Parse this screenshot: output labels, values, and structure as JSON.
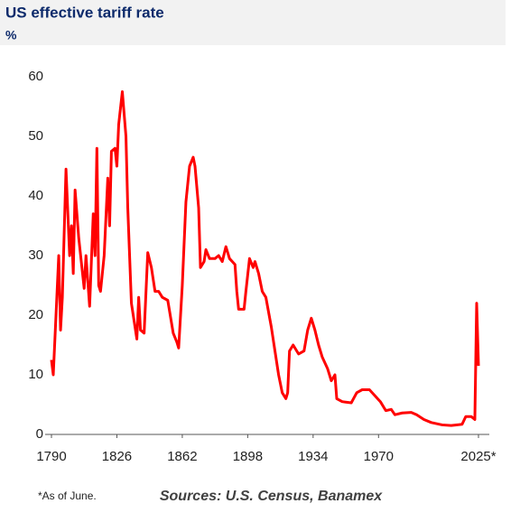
{
  "chart_data": {
    "type": "line",
    "title": "US effective tariff rate",
    "subtitle": "%",
    "x": [
      1790,
      1791,
      1794,
      1795,
      1796,
      1798,
      1800,
      1801,
      1802,
      1803,
      1805,
      1808,
      1809,
      1811,
      1813,
      1814,
      1815,
      1816,
      1817,
      1819,
      1821,
      1822,
      1823,
      1825,
      1826,
      1827,
      1829,
      1831,
      1832,
      1834,
      1835,
      1837,
      1838,
      1839,
      1841,
      1843,
      1845,
      1847,
      1849,
      1851,
      1854,
      1857,
      1859,
      1860,
      1862,
      1864,
      1866,
      1868,
      1869,
      1871,
      1872,
      1874,
      1875,
      1877,
      1880,
      1882,
      1884,
      1886,
      1888,
      1891,
      1892,
      1893,
      1896,
      1897,
      1899,
      1901,
      1902,
      1904,
      1906,
      1908,
      1911,
      1913,
      1915,
      1917,
      1919,
      1920,
      1921,
      1923,
      1925,
      1926,
      1929,
      1931,
      1933,
      1935,
      1937,
      1939,
      1942,
      1944,
      1946,
      1947,
      1950,
      1955,
      1958,
      1961,
      1965,
      1968,
      1971,
      1974,
      1977,
      1979,
      1983,
      1988,
      1991,
      1995,
      1999,
      2005,
      2010,
      2016,
      2018,
      2021,
      2023,
      2024,
      2025
    ],
    "series": [
      {
        "name": "US effective tariff rate",
        "color": "#ff0000",
        "values": [
          12.5,
          10,
          30,
          17.5,
          23,
          44.5,
          30,
          35,
          27,
          41,
          33,
          24.5,
          30,
          21.5,
          37,
          30,
          48,
          25,
          24,
          30,
          43,
          35,
          47.5,
          48,
          45,
          52,
          57.5,
          50,
          38,
          22,
          20,
          16,
          23,
          17.5,
          17,
          30.5,
          28,
          24,
          24,
          23,
          22.5,
          17,
          15.5,
          14.5,
          25,
          39,
          45,
          46.5,
          45,
          38,
          28,
          29,
          31,
          29.5,
          29.5,
          30,
          29,
          31.5,
          29.5,
          28.5,
          24,
          21,
          21,
          24,
          29.5,
          28,
          29,
          27,
          24,
          23,
          18,
          14,
          10,
          7,
          6,
          7,
          14,
          15,
          14,
          13.5,
          14,
          17.5,
          19.5,
          17.5,
          15,
          13,
          11,
          9,
          10,
          6,
          5.5,
          5.3,
          7,
          7.5,
          7.5,
          6.5,
          5.5,
          4,
          4.2,
          3.3,
          3.6,
          3.7,
          3.3,
          2.5,
          2,
          1.6,
          1.5,
          1.7,
          3,
          3,
          2.5,
          22,
          11.5
        ]
      }
    ],
    "xlim": [
      1790,
      2025
    ],
    "xticks": [
      1790,
      1826,
      1862,
      1898,
      1934,
      1970,
      {
        "value": 2025,
        "label": "2025*"
      }
    ],
    "ylim": [
      0,
      60
    ],
    "yticks": [
      0,
      10,
      20,
      30,
      40,
      50,
      60
    ],
    "grid": false,
    "footnote": "*As of June.",
    "source": "Sources: U.S. Census, Banamex"
  }
}
